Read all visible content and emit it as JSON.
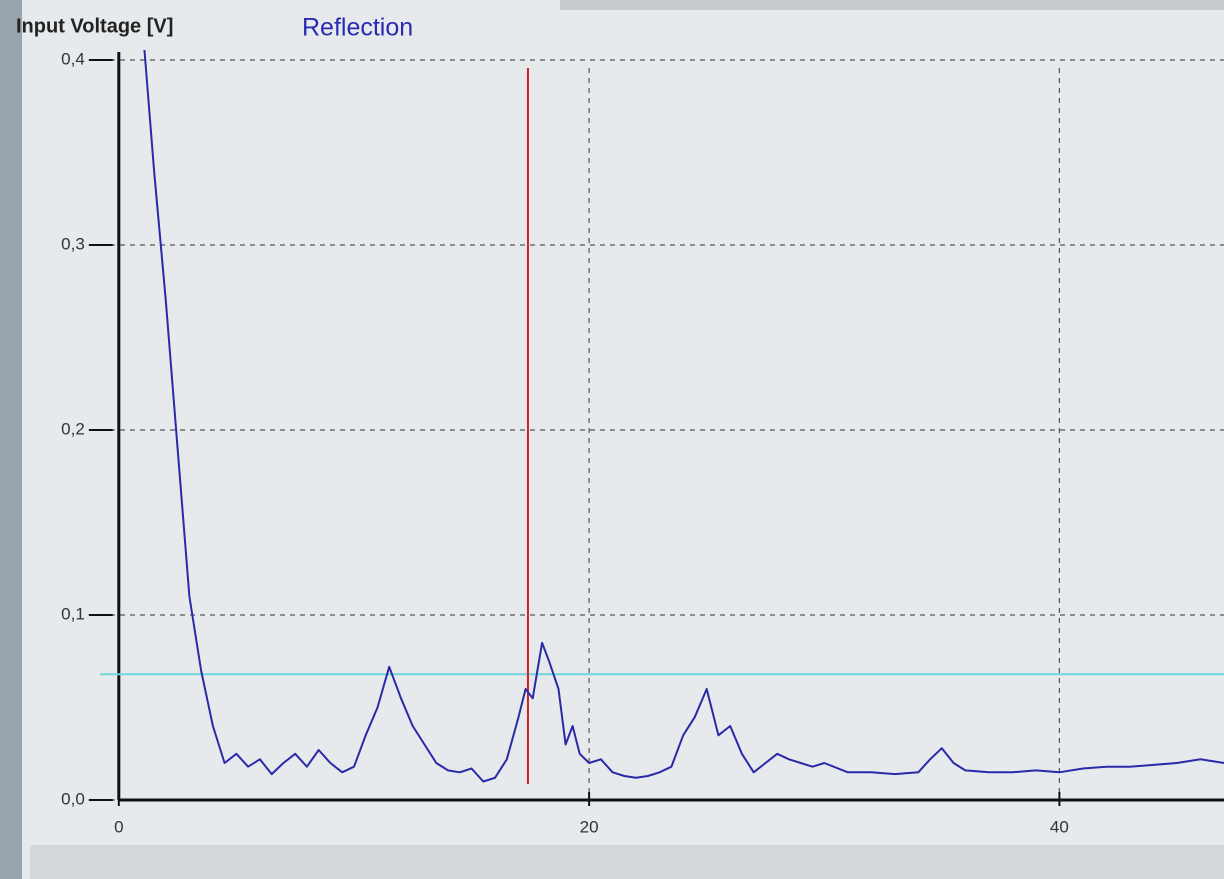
{
  "chart_data": {
    "type": "line",
    "title": "Reflection",
    "y_label": "Input Voltage [V]",
    "x": [
      1,
      1.5,
      2,
      2.5,
      3,
      3.5,
      4,
      4.5,
      5,
      5.5,
      6,
      6.5,
      7,
      7.5,
      8,
      8.5,
      9,
      9.5,
      10,
      10.5,
      11,
      11.5,
      12,
      12.5,
      13,
      13.5,
      14,
      14.5,
      15,
      15.5,
      16,
      16.5,
      17,
      17.3,
      17.6,
      18,
      18.3,
      18.7,
      19,
      19.3,
      19.6,
      20,
      20.5,
      21,
      21.5,
      22,
      22.5,
      23,
      23.5,
      24,
      24.5,
      25,
      25.5,
      26,
      26.5,
      27,
      27.5,
      28,
      28.5,
      29,
      29.5,
      30,
      31,
      32,
      33,
      34,
      34.5,
      35,
      35.5,
      36,
      37,
      38,
      39,
      40,
      41,
      42,
      43,
      44,
      45,
      46,
      47
    ],
    "series": [
      {
        "color": "#2a2aa8",
        "values": [
          0.42,
          0.34,
          0.27,
          0.19,
          0.11,
          0.07,
          0.04,
          0.02,
          0.025,
          0.018,
          0.022,
          0.014,
          0.02,
          0.025,
          0.018,
          0.027,
          0.02,
          0.015,
          0.018,
          0.035,
          0.05,
          0.072,
          0.055,
          0.04,
          0.03,
          0.02,
          0.016,
          0.015,
          0.017,
          0.01,
          0.012,
          0.022,
          0.045,
          0.06,
          0.055,
          0.085,
          0.075,
          0.06,
          0.03,
          0.04,
          0.025,
          0.02,
          0.022,
          0.015,
          0.013,
          0.012,
          0.013,
          0.015,
          0.018,
          0.035,
          0.045,
          0.06,
          0.035,
          0.04,
          0.025,
          0.015,
          0.02,
          0.025,
          0.022,
          0.02,
          0.018,
          0.02,
          0.015,
          0.015,
          0.014,
          0.015,
          0.022,
          0.028,
          0.02,
          0.016,
          0.015,
          0.015,
          0.016,
          0.015,
          0.017,
          0.018,
          0.018,
          0.019,
          0.02,
          0.022,
          0.02
        ]
      }
    ],
    "cursor_x": 17.4,
    "cursor_color": "#d42020",
    "threshold": 0.068,
    "threshold_color": "#6fd6dc",
    "xlim": [
      -0.8,
      47
    ],
    "ylim": [
      0,
      0.4
    ],
    "xticks": [
      0,
      20,
      40
    ],
    "yticks": [
      {
        "value": 0,
        "label": "0,0"
      },
      {
        "value": 0.1,
        "label": "0,1"
      },
      {
        "value": 0.2,
        "label": "0,2"
      },
      {
        "value": 0.3,
        "label": "0,3"
      },
      {
        "value": 0.4,
        "label": "0,4"
      }
    ],
    "grid": true
  }
}
